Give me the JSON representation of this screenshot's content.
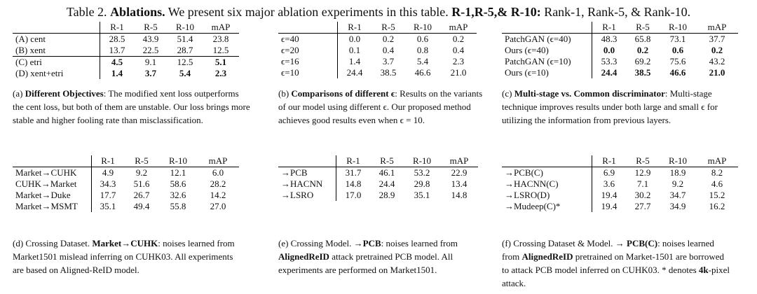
{
  "title": {
    "prefix": "Table 2. ",
    "label": "Ablations.",
    "text": " We present six major ablation experiments in this table. ",
    "bold2": "R-1,R-5,& R-10:",
    "tail": " Rank-1, Rank-5, & Rank-10."
  },
  "headers": [
    "R-1",
    "R-5",
    "R-10",
    "mAP"
  ],
  "table_a": {
    "rows": [
      {
        "label": "(A) cent",
        "vals": [
          "28.5",
          "43.9",
          "51.4",
          "23.8"
        ]
      },
      {
        "label": "(B) xent",
        "vals": [
          "13.7",
          "22.5",
          "28.7",
          "12.5"
        ]
      },
      {
        "label": "(C) etri",
        "vals": [
          "4.5",
          "9.1",
          "12.5",
          "5.1"
        ]
      },
      {
        "label": "(D) xent+etri",
        "vals": [
          "1.4",
          "3.7",
          "5.4",
          "2.3"
        ]
      }
    ],
    "caption": {
      "prefix": "(a) ",
      "bold": "Different Objectives",
      "text": ": The modified xent loss outperforms the cent loss, but both of them are unstable. Our loss brings more stable and higher fooling rate than misclassification."
    }
  },
  "table_b": {
    "rows": [
      {
        "label": "ϵ=40",
        "vals": [
          "0.0",
          "0.2",
          "0.6",
          "0.2"
        ]
      },
      {
        "label": "ϵ=20",
        "vals": [
          "0.1",
          "0.4",
          "0.8",
          "0.4"
        ]
      },
      {
        "label": "ϵ=16",
        "vals": [
          "1.4",
          "3.7",
          "5.4",
          "2.3"
        ]
      },
      {
        "label": "ϵ=10",
        "vals": [
          "24.4",
          "38.5",
          "46.6",
          "21.0"
        ]
      }
    ],
    "caption": {
      "prefix": "(b) ",
      "bold": "Comparisons of different ϵ",
      "text": ": Results on the variants of our model using different ϵ. Our proposed method achieves good results even when ϵ = 10."
    }
  },
  "table_c": {
    "rows": [
      {
        "label": "PatchGAN (ϵ=40)",
        "vals": [
          "48.3",
          "65.8",
          "73.1",
          "37.7"
        ]
      },
      {
        "label": "Ours (ϵ=40)",
        "vals": [
          "0.0",
          "0.2",
          "0.6",
          "0.2"
        ]
      },
      {
        "label": "PatchGAN (ϵ=10)",
        "vals": [
          "53.3",
          "69.2",
          "75.6",
          "43.2"
        ]
      },
      {
        "label": "Ours (ϵ=10)",
        "vals": [
          "24.4",
          "38.5",
          "46.6",
          "21.0"
        ]
      }
    ],
    "caption": {
      "prefix": "(c) ",
      "bold": "Multi-stage vs. Common discriminator",
      "text": ": Multi-stage technique improves results under both large and small ϵ for utilizing the information from previous layers."
    }
  },
  "table_d": {
    "rows": [
      {
        "label": "Market→CUHK",
        "vals": [
          "4.9",
          "9.2",
          "12.1",
          "6.0"
        ]
      },
      {
        "label": "CUHK→Market",
        "vals": [
          "34.3",
          "51.6",
          "58.6",
          "28.2"
        ]
      },
      {
        "label": "Market→Duke",
        "vals": [
          "17.7",
          "26.7",
          "32.6",
          "14.2"
        ]
      },
      {
        "label": "Market→MSMT",
        "vals": [
          "35.1",
          "49.4",
          "55.8",
          "27.0"
        ]
      }
    ],
    "caption": {
      "prefix": "(d) Crossing Dataset. ",
      "bold": "Market→CUHK",
      "text": ": noises learned from Market1501 mislead inferring on CUHK03. All experiments are based on Aligned-ReID model."
    }
  },
  "table_e": {
    "rows": [
      {
        "label": "→PCB",
        "vals": [
          "31.7",
          "46.1",
          "53.2",
          "22.9"
        ]
      },
      {
        "label": "→HACNN",
        "vals": [
          "14.8",
          "24.4",
          "29.8",
          "13.4"
        ]
      },
      {
        "label": "→LSRO",
        "vals": [
          "17.0",
          "28.9",
          "35.1",
          "14.8"
        ]
      }
    ],
    "caption": {
      "prefix": "(e) Crossing Model. →",
      "bold": "PCB",
      "text1": ": noises learned from ",
      "bold2": "AlignedReID",
      "text2": " attack pretrained PCB model. All experiments are performed on Market1501."
    }
  },
  "table_f": {
    "rows": [
      {
        "label": "→PCB(C)",
        "vals": [
          "6.9",
          "12.9",
          "18.9",
          "8.2"
        ]
      },
      {
        "label": "→HACNN(C)",
        "vals": [
          "3.6",
          "7.1",
          "9.2",
          "4.6"
        ]
      },
      {
        "label": "→LSRO(D)",
        "vals": [
          "19.4",
          "30.2",
          "34.7",
          "15.2"
        ]
      },
      {
        "label": "→Mudeep(C)*",
        "vals": [
          "19.4",
          "27.7",
          "34.9",
          "16.2"
        ]
      }
    ],
    "caption": {
      "prefix": "(f) Crossing Dataset & Model. → ",
      "bold": "PCB(C)",
      "text1": ": noises learned from ",
      "bold2": "AlignedReID",
      "text2": " pretrained on Market-1501 are borrowed to attack PCB model inferred on CUHK03. * denotes ",
      "bold3": "4k",
      "text3": "-pixel attack."
    }
  }
}
